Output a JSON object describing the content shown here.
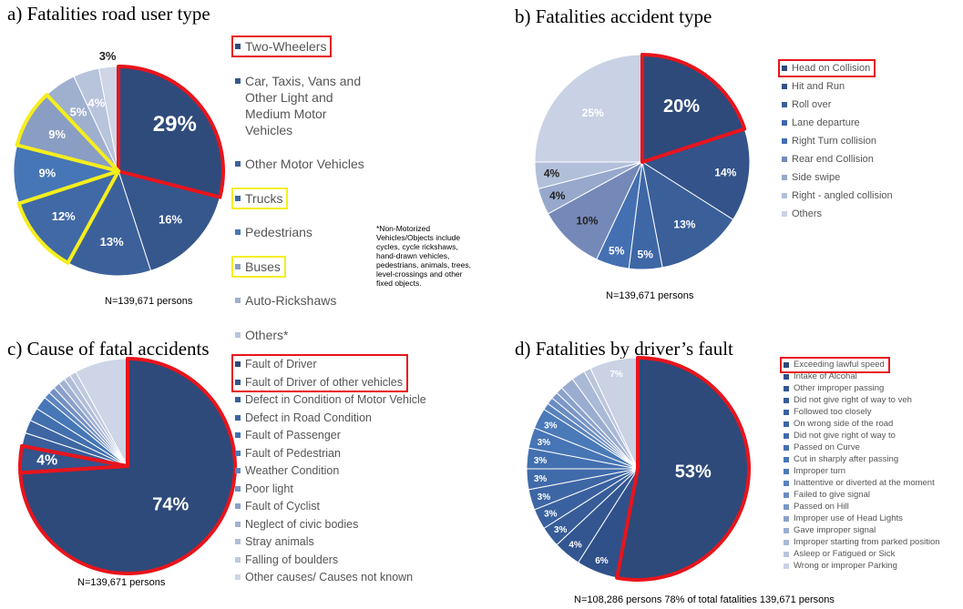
{
  "chart_data": [
    {
      "type": "pie",
      "title": "a) Fatalities road user type",
      "note": "N=139,671 persons",
      "footnote": "*Non-Motorized Vehicles/Objects include cycles, cycle rickshaws, hand-drawn vehicles, pedestrians, animals, trees, level-crossings and other fixed objects.",
      "categories": [
        "Two-Wheelers",
        "Car, Taxis, Vans and Other Light and Medium Motor Vehicles",
        "Other Motor Vehicles",
        "Trucks",
        "Pedestrians",
        "Buses",
        "Auto-Rickshaws",
        "Others*",
        null
      ],
      "values": [
        29,
        16,
        13,
        12,
        9,
        9,
        5,
        4,
        3
      ],
      "value_labels": [
        "29%",
        "16%",
        "13%",
        "12%",
        "9%",
        "9%",
        "5%",
        "4%",
        "3%"
      ],
      "colors": [
        "#2f4b7c",
        "#36578c",
        "#3c619a",
        "#4069a6",
        "#4676b6",
        "#8a9dc3",
        "#9fb0cf",
        "#b8c4dc",
        "#cdd5e6"
      ],
      "outlines": [
        "#e8141c",
        null,
        null,
        "#f5ee1d",
        null,
        "#f5ee1d",
        null,
        null,
        null
      ]
    },
    {
      "type": "pie",
      "title": "b) Fatalities accident type",
      "note": "N=139,671 persons",
      "categories": [
        "Head on Collision",
        "Hit and Run",
        "Roll over",
        "Lane departure",
        "Right Turn collision",
        "Rear end Collision",
        "Side swipe",
        "Right - angled collision",
        "Others"
      ],
      "values": [
        20,
        14,
        13,
        5,
        5,
        10,
        4,
        4,
        25
      ],
      "value_labels": [
        "20%",
        "14%",
        "13%",
        "5%",
        "5%",
        "10%",
        "4%",
        "4%",
        "25%"
      ],
      "colors": [
        "#2d4a7a",
        "#33538a",
        "#3a5f99",
        "#3e67a6",
        "#4470b2",
        "#7589b8",
        "#97a8cc",
        "#b1bfd9",
        "#c9d2e4"
      ],
      "outlines": [
        "#e8141c",
        null,
        null,
        null,
        null,
        null,
        null,
        null,
        null
      ]
    },
    {
      "type": "pie",
      "title": "c) Cause of fatal accidents",
      "note": "N=139,671 persons",
      "categories": [
        "Fault of Driver",
        "Fault of Driver of other vehicles",
        "Defect in Condition of Motor Vehicle",
        "Defect in Road Condition",
        "Fault of Passenger",
        "Fault of Pedestrian",
        "Weather Condition",
        "Poor light",
        "Fault of Cyclist",
        "Neglect of civic bodies",
        "Stray animals",
        "Falling of boulders",
        "Other causes/ Causes not known"
      ],
      "values": [
        74,
        4,
        2,
        2,
        2,
        2,
        1,
        1,
        1,
        1,
        1,
        1,
        8
      ],
      "value_labels": [
        "74%",
        "4%",
        null,
        null,
        null,
        null,
        null,
        null,
        null,
        null,
        null,
        null,
        null
      ],
      "colors": [
        "#2d4a7a",
        "#33548c",
        "#395e99",
        "#3d66a3",
        "#426fae",
        "#4677b7",
        "#5c85bf",
        "#7390c3",
        "#8b9fca",
        "#a2b2d3",
        "#b1bed9",
        "#bfc9df",
        "#cdd5e6"
      ],
      "outlines": [
        "#e8141c",
        "#e8141c",
        null,
        null,
        null,
        null,
        null,
        null,
        null,
        null,
        null,
        null,
        null
      ]
    },
    {
      "type": "pie",
      "title": "d) Fatalities by driver’s fault",
      "note": "N=108,286 persons 78% of total fatalities 139,671 persons",
      "categories": [
        "Exceeding lawful speed",
        "Intake of Alcohal",
        "Other improper passing",
        "Did not give right of way to veh",
        "Followed too closely",
        "On wrong side of the road",
        "Did not give right of way to",
        "Passed on Curve",
        "Cut in sharply after passing",
        "Improper turn",
        "Inattentive or diverted at the moment",
        "Failed to give signal",
        "Passed on Hill",
        "Improper use of Head Lights",
        "Gave improper signal",
        "Improper starting from parked position",
        "Asleep or Fatigued or Sick",
        "Wrong or improper Parking"
      ],
      "values": [
        53,
        6,
        4,
        3,
        3,
        3,
        3,
        3,
        3,
        3,
        1,
        1,
        1,
        1,
        2,
        2,
        1,
        7
      ],
      "value_labels": [
        "53%",
        "6%",
        "4%",
        "3%",
        "3%",
        "3%",
        "3%",
        "3%",
        "3%",
        "3%",
        null,
        null,
        null,
        null,
        null,
        null,
        null,
        "7%"
      ],
      "colors": [
        "#2d4a7a",
        "#30508a",
        "#335691",
        "#375c98",
        "#3a619f",
        "#3d66a5",
        "#406bab",
        "#4370b0",
        "#4775b5",
        "#4b7ab9",
        "#5a83bd",
        "#6a8dc2",
        "#7a97c6",
        "#8aa2cb",
        "#9aadd0",
        "#aab9d6",
        "#bac5dc",
        "#cad2e4"
      ],
      "outlines": [
        "#e8141c",
        null,
        null,
        null,
        null,
        null,
        null,
        null,
        null,
        null,
        null,
        null,
        null,
        null,
        null,
        null,
        null,
        null
      ]
    }
  ]
}
